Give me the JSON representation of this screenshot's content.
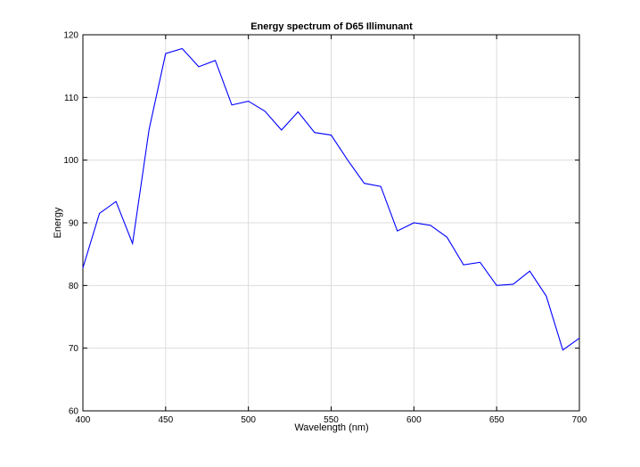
{
  "chart_data": {
    "type": "line",
    "title": "Energy spectrum of D65 Illimunant",
    "xlabel": "Wavelength (nm)",
    "ylabel": "Energy",
    "xlim": [
      400,
      700
    ],
    "ylim": [
      60,
      120
    ],
    "xticks": [
      400,
      450,
      500,
      550,
      600,
      650,
      700
    ],
    "yticks": [
      60,
      70,
      80,
      90,
      100,
      110,
      120
    ],
    "grid": true,
    "line_color": "#0000ff",
    "series": [
      {
        "x": [
          400,
          410,
          420,
          430,
          440,
          450,
          460,
          470,
          480,
          490,
          500,
          510,
          520,
          530,
          540,
          550,
          560,
          570,
          580,
          590,
          600,
          610,
          620,
          630,
          640,
          650,
          660,
          670,
          680,
          690,
          700
        ],
        "values": [
          82.8,
          91.5,
          93.4,
          86.7,
          104.9,
          117.0,
          117.8,
          114.9,
          115.9,
          108.8,
          109.4,
          107.8,
          104.8,
          107.7,
          104.4,
          104.0,
          100.0,
          96.3,
          95.8,
          88.7,
          90.0,
          89.6,
          87.7,
          83.3,
          83.7,
          80.0,
          80.2,
          82.3,
          78.3,
          69.7,
          71.6
        ]
      }
    ]
  }
}
